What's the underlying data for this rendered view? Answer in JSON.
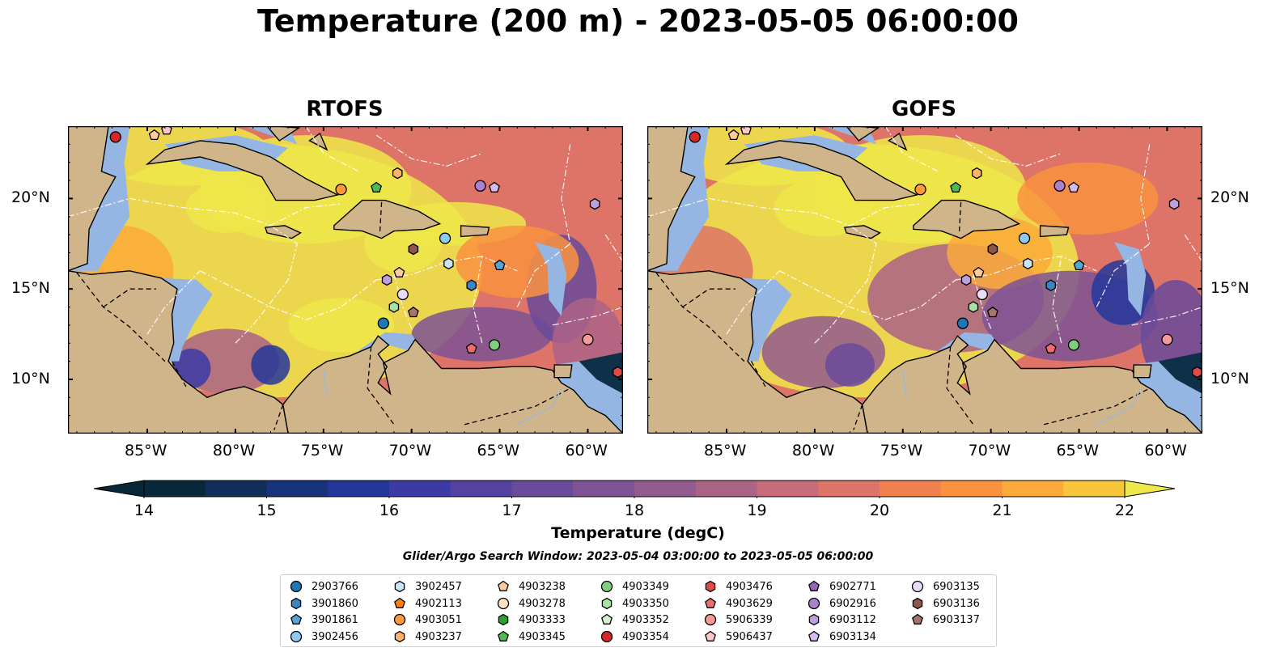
{
  "title": "Temperature (200 m) - 2023-05-05 06:00:00",
  "panels": [
    {
      "title": "RTOFS"
    },
    {
      "title": "GOFS"
    }
  ],
  "axes": {
    "x_ticks": [
      "85°W",
      "80°W",
      "75°W",
      "70°W",
      "65°W",
      "60°W"
    ],
    "y_ticks": [
      "20°N",
      "15°N",
      "10°N"
    ],
    "lon_range": [
      -89.5,
      -58.0
    ],
    "lat_range": [
      7.0,
      24.0
    ]
  },
  "colorbar": {
    "label": "Temperature (degC)",
    "ticks": [
      "14",
      "15",
      "16",
      "17",
      "18",
      "19",
      "20",
      "21",
      "22"
    ],
    "min": 14,
    "max": 22,
    "step": 0.5,
    "colors": [
      "#062838",
      "#0f2f5a",
      "#16337c",
      "#23379a",
      "#3c3aa6",
      "#55419f",
      "#6a4a9a",
      "#7e5294",
      "#945b8f",
      "#ab6386",
      "#c56b79",
      "#dd7467",
      "#f0814e",
      "#fa9240",
      "#fcaa3a",
      "#f7c63b",
      "#eee84a"
    ]
  },
  "search_window": "Glider/Argo Search Window: 2023-05-04 03:00:00 to 2023-05-05 06:00:00",
  "legend": [
    {
      "label": "2903766",
      "marker": "circle",
      "color": "#1f77b4"
    },
    {
      "label": "3901860",
      "marker": "hexagon",
      "color": "#3a86c4"
    },
    {
      "label": "3901861",
      "marker": "pentagon",
      "color": "#56a4d8"
    },
    {
      "label": "3902456",
      "marker": "circle",
      "color": "#8ec9ee"
    },
    {
      "label": "3902457",
      "marker": "hexagon",
      "color": "#c7e6f6"
    },
    {
      "label": "4902113",
      "marker": "pentagon",
      "color": "#ff7f0e"
    },
    {
      "label": "4903051",
      "marker": "circle",
      "color": "#ff9a3c"
    },
    {
      "label": "4903237",
      "marker": "hexagon",
      "color": "#ffb26b"
    },
    {
      "label": "4903238",
      "marker": "pentagon",
      "color": "#ffcb9a"
    },
    {
      "label": "4903278",
      "marker": "circle",
      "color": "#fde2c5"
    },
    {
      "label": "4903333",
      "marker": "hexagon",
      "color": "#2ca02c"
    },
    {
      "label": "4903345",
      "marker": "pentagon",
      "color": "#52b852"
    },
    {
      "label": "4903349",
      "marker": "circle",
      "color": "#7fcf7f"
    },
    {
      "label": "4903350",
      "marker": "hexagon",
      "color": "#a8e3a3"
    },
    {
      "label": "4903352",
      "marker": "pentagon",
      "color": "#d2f3cf"
    },
    {
      "label": "4903354",
      "marker": "circle",
      "color": "#d62728"
    },
    {
      "label": "4903476",
      "marker": "hexagon",
      "color": "#e04a4b"
    },
    {
      "label": "4903629",
      "marker": "pentagon",
      "color": "#ec6d6e"
    },
    {
      "label": "5906339",
      "marker": "circle",
      "color": "#f59a9a"
    },
    {
      "label": "5906437",
      "marker": "pentagon",
      "color": "#fcc7c7"
    },
    {
      "label": "6902771",
      "marker": "pentagon",
      "color": "#9467bd"
    },
    {
      "label": "6902916",
      "marker": "circle",
      "color": "#a883cc"
    },
    {
      "label": "6903112",
      "marker": "hexagon",
      "color": "#bd9fdb"
    },
    {
      "label": "6903134",
      "marker": "pentagon",
      "color": "#d3bdea"
    },
    {
      "label": "6903135",
      "marker": "circle",
      "color": "#eadcf6"
    },
    {
      "label": "6903136",
      "marker": "hexagon",
      "color": "#8c564b"
    },
    {
      "label": "6903137",
      "marker": "pentagon",
      "color": "#a8736a"
    }
  ],
  "floats": [
    {
      "id": "4903354",
      "lon": -86.8,
      "lat": 23.4
    },
    {
      "id": "4903238",
      "lon": -84.6,
      "lat": 23.5
    },
    {
      "id": "5906437",
      "lon": -83.9,
      "lat": 23.8
    },
    {
      "id": "4903051",
      "lon": -74.0,
      "lat": 20.5
    },
    {
      "id": "4903345",
      "lon": -72.0,
      "lat": 20.6
    },
    {
      "id": "4903237",
      "lon": -70.8,
      "lat": 21.4
    },
    {
      "id": "6902916",
      "lon": -66.1,
      "lat": 20.7
    },
    {
      "id": "6903134",
      "lon": -65.3,
      "lat": 20.6
    },
    {
      "id": "6903112",
      "lon": -59.6,
      "lat": 19.7
    },
    {
      "id": "3902456",
      "lon": -68.1,
      "lat": 17.8
    },
    {
      "id": "6903136",
      "lon": -69.9,
      "lat": 17.2
    },
    {
      "id": "3902457",
      "lon": -67.9,
      "lat": 16.4
    },
    {
      "id": "3901861",
      "lon": -65.0,
      "lat": 16.3
    },
    {
      "id": "4903238",
      "lon": -70.7,
      "lat": 15.9
    },
    {
      "id": "6903112",
      "lon": -71.4,
      "lat": 15.5
    },
    {
      "id": "3901860",
      "lon": -66.6,
      "lat": 15.2
    },
    {
      "id": "6903135",
      "lon": -70.5,
      "lat": 14.7
    },
    {
      "id": "4903350",
      "lon": -71.0,
      "lat": 14.0
    },
    {
      "id": "6903137",
      "lon": -69.9,
      "lat": 13.7
    },
    {
      "id": "2903766",
      "lon": -71.6,
      "lat": 13.1
    },
    {
      "id": "4903629",
      "lon": -66.6,
      "lat": 11.7
    },
    {
      "id": "4903349",
      "lon": -65.3,
      "lat": 11.9
    },
    {
      "id": "5906339",
      "lon": -60.0,
      "lat": 12.2
    },
    {
      "id": "4903476",
      "lon": -58.3,
      "lat": 10.4
    }
  ]
}
